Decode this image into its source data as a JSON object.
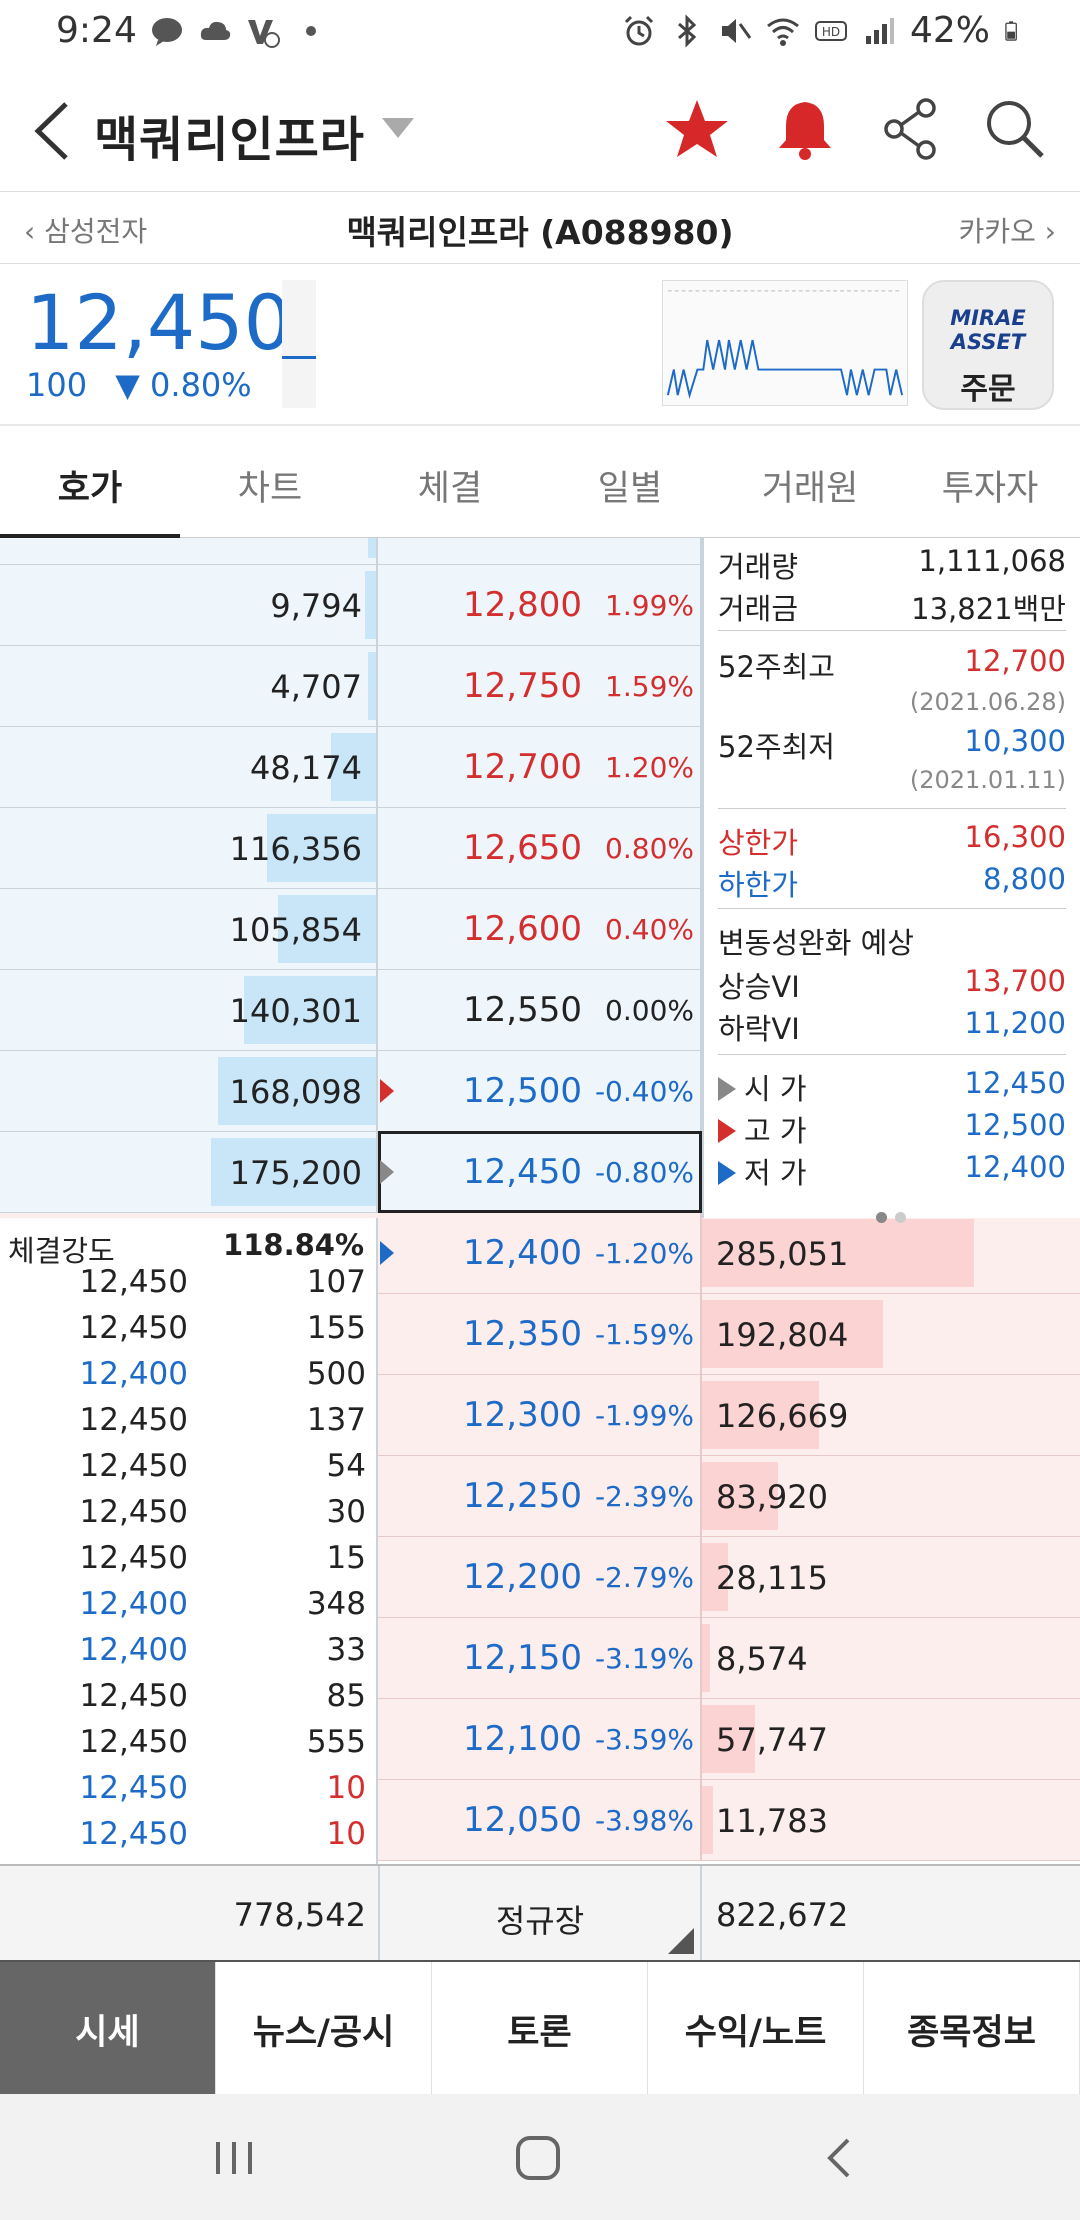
{
  "status_bar": {
    "time": "9:24",
    "battery": "42%"
  },
  "header": {
    "title": "맥쿼리인프라"
  },
  "nav": {
    "prev": "삼성전자",
    "current": "맥쿼리인프라 (A088980)",
    "next": "카카오"
  },
  "quote": {
    "price": "12,450",
    "change": "100",
    "change_pct": "0.80%",
    "order_logo_line1": "MIRAE",
    "order_logo_line2": "ASSET",
    "order_label": "주문"
  },
  "tabs": [
    "호가",
    "차트",
    "체결",
    "일별",
    "거래원",
    "투자자"
  ],
  "asks": [
    {
      "qty": "9,794",
      "price": "12,800",
      "pct": "1.99%",
      "bar": 0.03
    },
    {
      "qty": "4,707",
      "price": "12,750",
      "pct": "1.59%",
      "bar": 0.02
    },
    {
      "qty": "48,174",
      "price": "12,700",
      "pct": "1.20%",
      "bar": 0.12
    },
    {
      "qty": "116,356",
      "price": "12,650",
      "pct": "0.80%",
      "bar": 0.29
    },
    {
      "qty": "105,854",
      "price": "12,600",
      "pct": "0.40%",
      "bar": 0.26
    },
    {
      "qty": "140,301",
      "price": "12,550",
      "pct": "0.00%",
      "bar": 0.35
    },
    {
      "qty": "168,098",
      "price": "12,500",
      "pct": "-0.40%",
      "bar": 0.42
    },
    {
      "qty": "175,200",
      "price": "12,450",
      "pct": "-0.80%",
      "bar": 0.44
    }
  ],
  "bids": [
    {
      "qty": "285,051",
      "price": "12,400",
      "pct": "-1.20%",
      "bar": 0.72
    },
    {
      "qty": "192,804",
      "price": "12,350",
      "pct": "-1.59%",
      "bar": 0.48
    },
    {
      "qty": "126,669",
      "price": "12,300",
      "pct": "-1.99%",
      "bar": 0.31
    },
    {
      "qty": "83,920",
      "price": "12,250",
      "pct": "-2.39%",
      "bar": 0.2
    },
    {
      "qty": "28,115",
      "price": "12,200",
      "pct": "-2.79%",
      "bar": 0.07
    },
    {
      "qty": "8,574",
      "price": "12,150",
      "pct": "-3.19%",
      "bar": 0.02
    },
    {
      "qty": "57,747",
      "price": "12,100",
      "pct": "-3.59%",
      "bar": 0.14
    },
    {
      "qty": "11,783",
      "price": "12,050",
      "pct": "-3.98%",
      "bar": 0.03
    }
  ],
  "info": {
    "volume_label": "거래량",
    "volume": "1,111,068",
    "amount_label": "거래금",
    "amount": "13,821백만",
    "high52_label": "52주최고",
    "high52": "12,700",
    "high52_date": "(2021.06.28)",
    "low52_label": "52주최저",
    "low52": "10,300",
    "low52_date": "(2021.01.11)",
    "upper_label": "상한가",
    "upper": "16,300",
    "lower_label": "하한가",
    "lower": "8,800",
    "vi_title": "변동성완화 예상",
    "vi_up_label": "상승VI",
    "vi_up": "13,700",
    "vi_down_label": "하락VI",
    "vi_down": "11,200",
    "open_label": "시 가",
    "open": "12,450",
    "high_label": "고 가",
    "high": "12,500",
    "low_label": "저 가",
    "low": "12,400"
  },
  "trades": {
    "strength_label": "체결강도",
    "strength": "118.84%",
    "rows": [
      {
        "price": "12,450",
        "qty": "107",
        "pc": "blk",
        "qc": "blk"
      },
      {
        "price": "12,450",
        "qty": "155",
        "pc": "blk",
        "qc": "blk"
      },
      {
        "price": "12,400",
        "qty": "500",
        "pc": "blue",
        "qc": "blk"
      },
      {
        "price": "12,450",
        "qty": "137",
        "pc": "blk",
        "qc": "blk"
      },
      {
        "price": "12,450",
        "qty": "54",
        "pc": "blk",
        "qc": "blk"
      },
      {
        "price": "12,450",
        "qty": "30",
        "pc": "blk",
        "qc": "blk"
      },
      {
        "price": "12,450",
        "qty": "15",
        "pc": "blk",
        "qc": "blk"
      },
      {
        "price": "12,400",
        "qty": "348",
        "pc": "blue",
        "qc": "blk"
      },
      {
        "price": "12,400",
        "qty": "33",
        "pc": "blue",
        "qc": "blk"
      },
      {
        "price": "12,450",
        "qty": "85",
        "pc": "blk",
        "qc": "blk"
      },
      {
        "price": "12,450",
        "qty": "555",
        "pc": "blk",
        "qc": "blk"
      },
      {
        "price": "12,450",
        "qty": "10",
        "pc": "blue",
        "qc": "red"
      },
      {
        "price": "12,450",
        "qty": "10",
        "pc": "blue",
        "qc": "red"
      }
    ]
  },
  "totals": {
    "ask_total": "778,542",
    "session": "정규장",
    "bid_total": "822,672"
  },
  "bottom_tabs": [
    "시세",
    "뉴스/공시",
    "토론",
    "수익/노트",
    "종목정보"
  ],
  "colors": {
    "up": "#d32f2f",
    "down": "#1d6bc6",
    "ask_bar": "#c8e6f8",
    "bid_bar": "#fbd3d3"
  }
}
